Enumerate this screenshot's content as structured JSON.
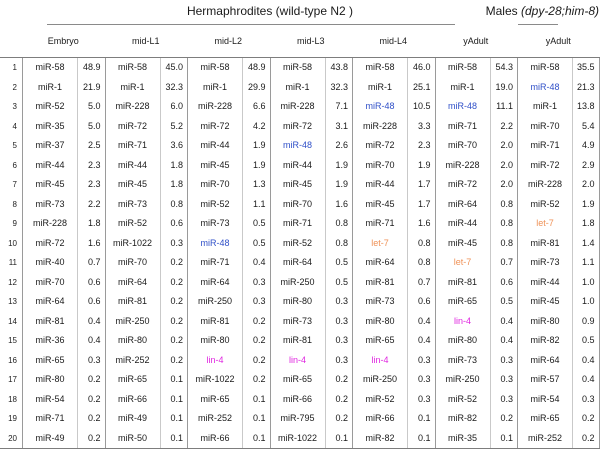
{
  "header": {
    "hermaphrodites_title": "Hermaphrodites (wild-type N2 )",
    "males_title_prefix": "Males ",
    "males_genotype": "(dpy-28;him-8)"
  },
  "highlights": {
    "miR-48": "#3050c8",
    "lin-4": "#e026e0",
    "let-7": "#ef9258"
  },
  "table": {
    "row_numbers": [
      1,
      2,
      3,
      4,
      5,
      6,
      7,
      8,
      9,
      10,
      11,
      12,
      13,
      14,
      15,
      16,
      17,
      18,
      19,
      20
    ],
    "columns": [
      {
        "label": "Embryo",
        "group": "hermaphrodites",
        "entries": [
          [
            "miR-58",
            "48.9"
          ],
          [
            "miR-1",
            "21.9"
          ],
          [
            "miR-52",
            "5.0"
          ],
          [
            "miR-35",
            "5.0"
          ],
          [
            "miR-37",
            "2.5"
          ],
          [
            "miR-44",
            "2.3"
          ],
          [
            "miR-45",
            "2.3"
          ],
          [
            "miR-73",
            "2.2"
          ],
          [
            "miR-228",
            "1.8"
          ],
          [
            "miR-72",
            "1.6"
          ],
          [
            "miR-40",
            "0.7"
          ],
          [
            "miR-70",
            "0.6"
          ],
          [
            "miR-64",
            "0.6"
          ],
          [
            "miR-81",
            "0.4"
          ],
          [
            "miR-36",
            "0.4"
          ],
          [
            "miR-65",
            "0.3"
          ],
          [
            "miR-80",
            "0.2"
          ],
          [
            "miR-54",
            "0.2"
          ],
          [
            "miR-71",
            "0.2"
          ],
          [
            "miR-49",
            "0.2"
          ]
        ]
      },
      {
        "label": "mid-L1",
        "group": "hermaphrodites",
        "entries": [
          [
            "miR-58",
            "45.0"
          ],
          [
            "miR-1",
            "32.3"
          ],
          [
            "miR-228",
            "6.0"
          ],
          [
            "miR-72",
            "5.2"
          ],
          [
            "miR-71",
            "3.6"
          ],
          [
            "miR-44",
            "1.8"
          ],
          [
            "miR-45",
            "1.8"
          ],
          [
            "miR-73",
            "0.8"
          ],
          [
            "miR-52",
            "0.6"
          ],
          [
            "miR-1022",
            "0.3"
          ],
          [
            "miR-70",
            "0.2"
          ],
          [
            "miR-64",
            "0.2"
          ],
          [
            "miR-81",
            "0.2"
          ],
          [
            "miR-250",
            "0.2"
          ],
          [
            "miR-80",
            "0.2"
          ],
          [
            "miR-252",
            "0.2"
          ],
          [
            "miR-65",
            "0.1"
          ],
          [
            "miR-66",
            "0.1"
          ],
          [
            "miR-49",
            "0.1"
          ],
          [
            "miR-50",
            "0.1"
          ]
        ]
      },
      {
        "label": "mid-L2",
        "group": "hermaphrodites",
        "entries": [
          [
            "miR-58",
            "48.9"
          ],
          [
            "miR-1",
            "29.9"
          ],
          [
            "miR-228",
            "6.6"
          ],
          [
            "miR-72",
            "4.2"
          ],
          [
            "miR-44",
            "1.9"
          ],
          [
            "miR-45",
            "1.9"
          ],
          [
            "miR-70",
            "1.3"
          ],
          [
            "miR-52",
            "1.1"
          ],
          [
            "miR-73",
            "0.5"
          ],
          [
            "miR-48",
            "0.5"
          ],
          [
            "miR-71",
            "0.4"
          ],
          [
            "miR-64",
            "0.3"
          ],
          [
            "miR-250",
            "0.3"
          ],
          [
            "miR-81",
            "0.2"
          ],
          [
            "miR-80",
            "0.2"
          ],
          [
            "lin-4",
            "0.2"
          ],
          [
            "miR-1022",
            "0.2"
          ],
          [
            "miR-65",
            "0.1"
          ],
          [
            "miR-252",
            "0.1"
          ],
          [
            "miR-66",
            "0.1"
          ]
        ]
      },
      {
        "label": "mid-L3",
        "group": "hermaphrodites",
        "entries": [
          [
            "miR-58",
            "43.8"
          ],
          [
            "miR-1",
            "32.3"
          ],
          [
            "miR-228",
            "7.1"
          ],
          [
            "miR-72",
            "3.1"
          ],
          [
            "miR-48",
            "2.6"
          ],
          [
            "miR-44",
            "1.9"
          ],
          [
            "miR-45",
            "1.9"
          ],
          [
            "miR-70",
            "1.6"
          ],
          [
            "miR-71",
            "0.8"
          ],
          [
            "miR-52",
            "0.8"
          ],
          [
            "miR-64",
            "0.5"
          ],
          [
            "miR-250",
            "0.5"
          ],
          [
            "miR-80",
            "0.3"
          ],
          [
            "miR-73",
            "0.3"
          ],
          [
            "miR-81",
            "0.3"
          ],
          [
            "lin-4",
            "0.3"
          ],
          [
            "miR-65",
            "0.2"
          ],
          [
            "miR-66",
            "0.2"
          ],
          [
            "miR-795",
            "0.2"
          ],
          [
            "miR-1022",
            "0.1"
          ]
        ]
      },
      {
        "label": "mid-L4",
        "group": "hermaphrodites",
        "entries": [
          [
            "miR-58",
            "46.0"
          ],
          [
            "miR-1",
            "25.1"
          ],
          [
            "miR-48",
            "10.5"
          ],
          [
            "miR-228",
            "3.3"
          ],
          [
            "miR-72",
            "2.3"
          ],
          [
            "miR-70",
            "1.9"
          ],
          [
            "miR-44",
            "1.7"
          ],
          [
            "miR-45",
            "1.7"
          ],
          [
            "miR-71",
            "1.6"
          ],
          [
            "let-7",
            "0.8"
          ],
          [
            "miR-64",
            "0.8"
          ],
          [
            "miR-81",
            "0.7"
          ],
          [
            "miR-73",
            "0.6"
          ],
          [
            "miR-80",
            "0.4"
          ],
          [
            "miR-65",
            "0.4"
          ],
          [
            "lin-4",
            "0.3"
          ],
          [
            "miR-250",
            "0.3"
          ],
          [
            "miR-52",
            "0.3"
          ],
          [
            "miR-66",
            "0.1"
          ],
          [
            "miR-82",
            "0.1"
          ]
        ]
      },
      {
        "label": "yAdult",
        "group": "hermaphrodites",
        "entries": [
          [
            "miR-58",
            "54.3"
          ],
          [
            "miR-1",
            "19.0"
          ],
          [
            "miR-48",
            "11.1"
          ],
          [
            "miR-71",
            "2.2"
          ],
          [
            "miR-70",
            "2.0"
          ],
          [
            "miR-228",
            "2.0"
          ],
          [
            "miR-72",
            "2.0"
          ],
          [
            "miR-64",
            "0.8"
          ],
          [
            "miR-44",
            "0.8"
          ],
          [
            "miR-45",
            "0.8"
          ],
          [
            "let-7",
            "0.7"
          ],
          [
            "miR-81",
            "0.6"
          ],
          [
            "miR-65",
            "0.5"
          ],
          [
            "lin-4",
            "0.4"
          ],
          [
            "miR-80",
            "0.4"
          ],
          [
            "miR-73",
            "0.3"
          ],
          [
            "miR-250",
            "0.3"
          ],
          [
            "miR-52",
            "0.3"
          ],
          [
            "miR-82",
            "0.2"
          ],
          [
            "miR-35",
            "0.1"
          ]
        ]
      },
      {
        "label": "yAdult",
        "group": "males",
        "entries": [
          [
            "miR-58",
            "35.5"
          ],
          [
            "miR-48",
            "21.3"
          ],
          [
            "miR-1",
            "13.8"
          ],
          [
            "miR-70",
            "5.4"
          ],
          [
            "miR-71",
            "4.9"
          ],
          [
            "miR-72",
            "2.9"
          ],
          [
            "miR-228",
            "2.0"
          ],
          [
            "miR-52",
            "1.9"
          ],
          [
            "let-7",
            "1.8"
          ],
          [
            "miR-81",
            "1.4"
          ],
          [
            "miR-73",
            "1.1"
          ],
          [
            "miR-44",
            "1.0"
          ],
          [
            "miR-45",
            "1.0"
          ],
          [
            "miR-80",
            "0.9"
          ],
          [
            "miR-82",
            "0.5"
          ],
          [
            "miR-64",
            "0.4"
          ],
          [
            "miR-57",
            "0.4"
          ],
          [
            "miR-54",
            "0.3"
          ],
          [
            "miR-65",
            "0.2"
          ],
          [
            "miR-252",
            "0.2"
          ]
        ]
      }
    ]
  }
}
